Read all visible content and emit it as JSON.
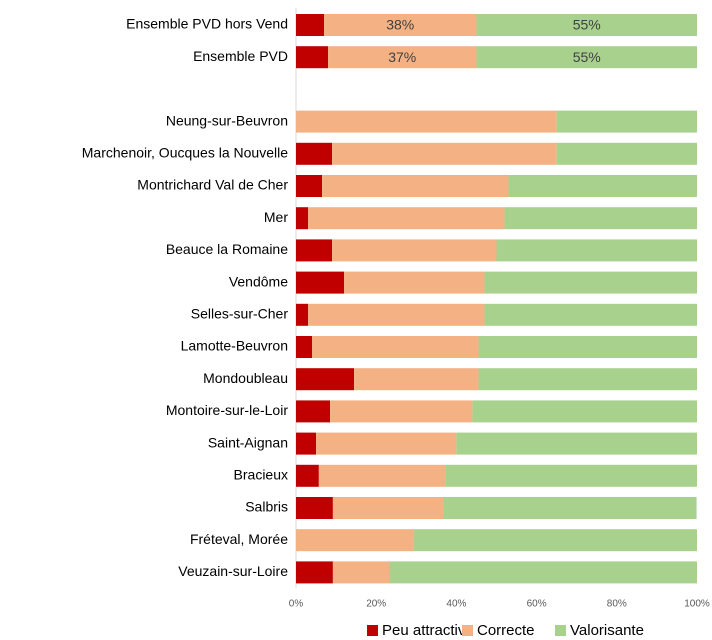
{
  "chart_data": {
    "type": "stacked_bar_horizontal",
    "categories": [
      "Ensemble PVD hors Vend",
      "Ensemble PVD",
      null,
      "Neung-sur-Beuvron",
      "Marchenoir, Oucques la Nouvelle",
      "Montrichard Val de Cher",
      "Mer",
      "Beauce la Romaine",
      "Vendôme",
      "Selles-sur-Cher",
      "Lamotte-Beuvron",
      "Mondoubleau",
      "Montoire-sur-le-Loir",
      "Saint-Aignan",
      "Bracieux",
      "Salbris",
      "Fréteval, Morée",
      "Veuzain-sur-Loire"
    ],
    "series": [
      {
        "name": "Peu attractive",
        "color": "#c00000",
        "values": [
          7,
          8,
          null,
          0,
          9,
          6.5,
          3,
          9,
          12,
          3,
          4,
          14.5,
          8.5,
          5,
          5.7,
          9.2,
          0,
          9.2
        ]
      },
      {
        "name": "Correcte",
        "color": "#f4b183",
        "values": [
          38,
          37,
          null,
          65,
          56,
          46.5,
          49,
          41,
          35,
          44,
          41.5,
          31,
          35.5,
          35,
          31.7,
          27.7,
          29.2,
          14
        ],
        "value_labels": [
          "38%",
          "37%",
          null,
          null,
          null,
          null,
          null,
          null,
          null,
          null,
          null,
          null,
          null,
          null,
          null,
          null,
          null,
          null
        ]
      },
      {
        "name": "Valorisante",
        "color": "#a9d18e",
        "values": [
          55,
          55,
          null,
          35,
          35,
          47,
          48,
          50,
          53,
          53,
          54.5,
          54.5,
          56,
          60,
          62.6,
          63,
          70.8,
          76.8
        ],
        "value_labels": [
          "55%",
          "55%",
          null,
          null,
          null,
          null,
          null,
          null,
          null,
          null,
          null,
          null,
          null,
          null,
          null,
          null,
          null,
          null
        ]
      }
    ],
    "xlim": [
      0,
      100
    ],
    "xticks": [
      {
        "value": 0,
        "label": "0%"
      },
      {
        "value": 20,
        "label": "20%"
      },
      {
        "value": 40,
        "label": "40%"
      },
      {
        "value": 60,
        "label": "60%"
      },
      {
        "value": 80,
        "label": "80%"
      },
      {
        "value": 100,
        "label": "100%"
      }
    ],
    "legend": "bottom"
  }
}
